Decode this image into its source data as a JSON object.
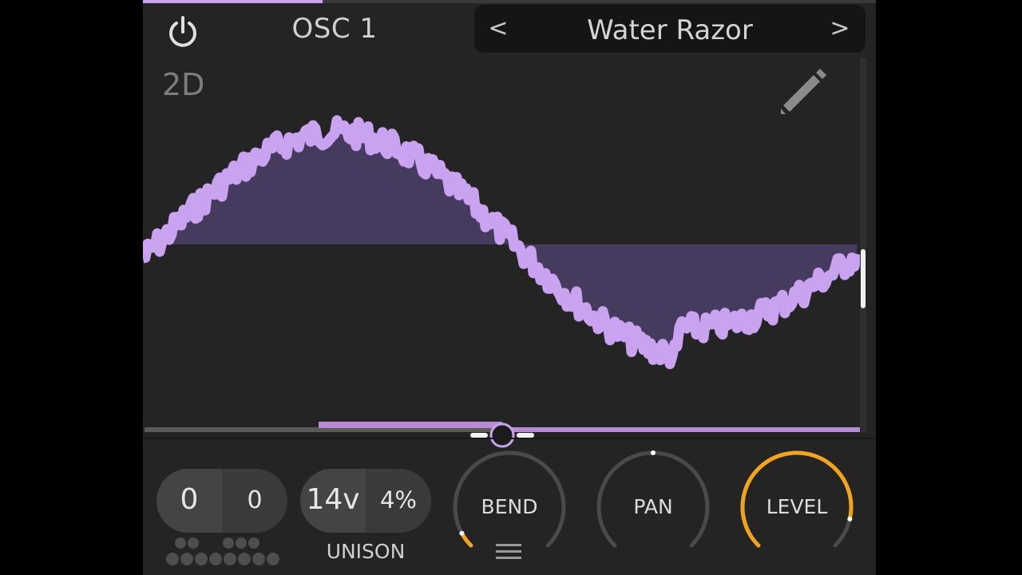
{
  "header": {
    "osc_title": "OSC 1",
    "power_icon": "power-icon"
  },
  "preset": {
    "prev_label": "<",
    "name": "Water Razor",
    "next_label": ">"
  },
  "display": {
    "mode_label": "2D",
    "edit_icon": "pencil-icon"
  },
  "wavetable_position": 0.5,
  "controls": {
    "transpose": {
      "octave": "0",
      "semitone": "0"
    },
    "unison": {
      "voices": "14v",
      "detune": "4%",
      "label": "UNISON"
    },
    "knobs": [
      {
        "name": "bend",
        "label": "BEND",
        "value": 0.06
      },
      {
        "name": "pan",
        "label": "PAN",
        "value": 0.5
      },
      {
        "name": "level",
        "label": "LEVEL",
        "value": 0.88
      }
    ]
  },
  "colors": {
    "accent": "#c9a3f0",
    "accent_fill": "#453b5e",
    "knob_active": "#f2a51c",
    "knob_track": "#4a4a4a"
  }
}
